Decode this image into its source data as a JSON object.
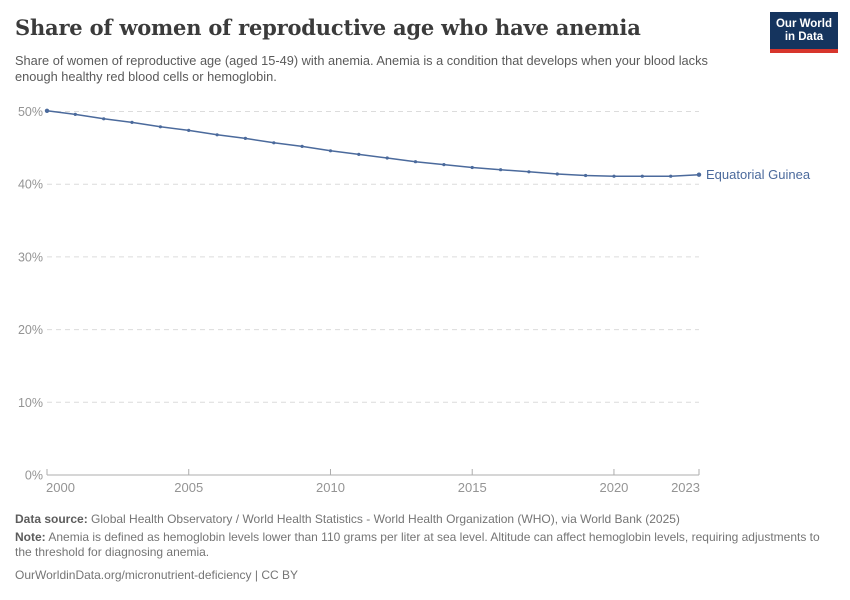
{
  "header": {
    "title": "Share of women of reproductive age who have anemia",
    "subtitle": "Share of women of reproductive age (aged 15-49) with anemia. Anemia is a condition that develops when your blood lacks enough healthy red blood cells or hemoglobin.",
    "logo": {
      "line1": "Our World",
      "line2": "in Data"
    }
  },
  "colors": {
    "line": "#4b6a9c",
    "entity_label": "#4b6a9c",
    "gridline": "#dcdcdc",
    "axis": "#adadad",
    "tick_label": "#949494",
    "title_text": "#3b3b3b",
    "subtitle_text": "#5a5a5a",
    "footer_text": "#757575",
    "logo_bg": "#15345e",
    "logo_stripe": "#d7352c"
  },
  "chart_data": {
    "type": "line",
    "title": "Share of women of reproductive age who have anemia",
    "xlabel": "",
    "ylabel": "",
    "grid": "horizontal-dashed",
    "legend_position": "end-of-line-label",
    "ylim": [
      0,
      50
    ],
    "xlim": [
      2000,
      2023
    ],
    "x": [
      2000,
      2001,
      2002,
      2003,
      2004,
      2005,
      2006,
      2007,
      2008,
      2009,
      2010,
      2011,
      2012,
      2013,
      2014,
      2015,
      2016,
      2017,
      2018,
      2019,
      2020,
      2021,
      2022,
      2023
    ],
    "series": [
      {
        "name": "Equatorial Guinea",
        "values": [
          50.1,
          49.6,
          49.0,
          48.5,
          47.9,
          47.4,
          46.8,
          46.3,
          45.7,
          45.2,
          44.6,
          44.1,
          43.6,
          43.1,
          42.7,
          42.3,
          42.0,
          41.7,
          41.4,
          41.2,
          41.1,
          41.1,
          41.1,
          41.3
        ]
      }
    ],
    "y_ticks": [
      {
        "value": 0,
        "label": "0%"
      },
      {
        "value": 10,
        "label": "10%"
      },
      {
        "value": 20,
        "label": "20%"
      },
      {
        "value": 30,
        "label": "30%"
      },
      {
        "value": 40,
        "label": "40%"
      },
      {
        "value": 50,
        "label": "50%"
      }
    ],
    "x_ticks": [
      {
        "value": 2000,
        "label": "2000"
      },
      {
        "value": 2005,
        "label": "2005"
      },
      {
        "value": 2010,
        "label": "2010"
      },
      {
        "value": 2015,
        "label": "2015"
      },
      {
        "value": 2020,
        "label": "2020"
      },
      {
        "value": 2023,
        "label": "2023"
      }
    ]
  },
  "footer": {
    "source_label": "Data source:",
    "source_text": " Global Health Observatory / World Health Statistics - World Health Organization (WHO), via World Bank (2025)",
    "note_label": "Note:",
    "note_text": " Anemia is defined as hemoglobin levels lower than 110 grams per liter at sea level. Altitude can affect hemoglobin levels, requiring adjustments to the threshold for diagnosing anemia.",
    "url_text": "OurWorldinData.org/micronutrient-deficiency | CC BY"
  }
}
